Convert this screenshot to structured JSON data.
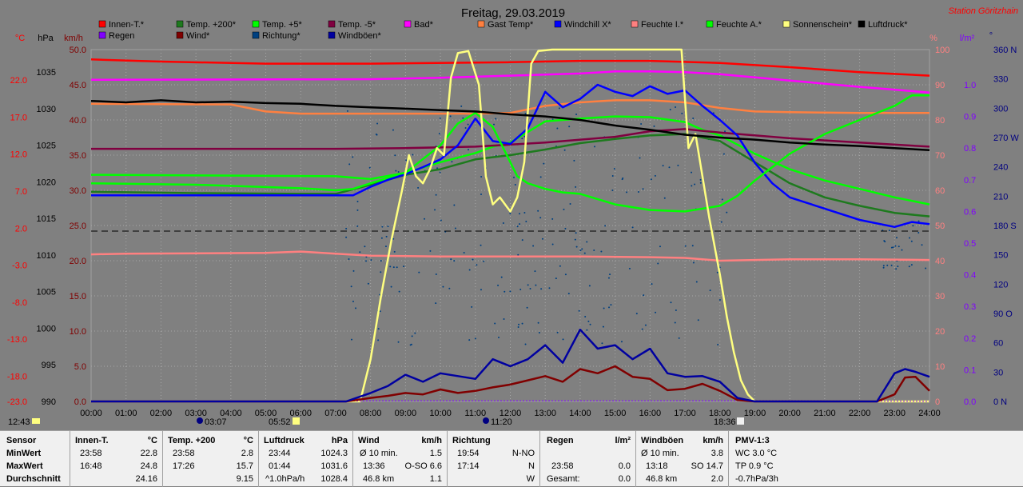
{
  "header": {
    "title": "Freitag, 29.03.2019",
    "station": "Station Göritzhain"
  },
  "axis_units": {
    "celsius": "°C",
    "hpa": "hPa",
    "kmh": "km/h",
    "percent": "%",
    "lm2": "l/m²",
    "deg": "°"
  },
  "legend": [
    {
      "label": "Innen-T.*",
      "color": "#ff0000"
    },
    {
      "label": "Temp. +200*",
      "color": "#1e7a1e"
    },
    {
      "label": "Temp. +5*",
      "color": "#00ff00"
    },
    {
      "label": "Temp. -5*",
      "color": "#800040"
    },
    {
      "label": "Bad*",
      "color": "#ff00ff"
    },
    {
      "label": "Gast Temp*",
      "color": "#ff8040"
    },
    {
      "label": "Windchill X*",
      "color": "#0000ff"
    },
    {
      "label": "Feuchte I.*",
      "color": "#ff8080"
    },
    {
      "label": "Feuchte A.*",
      "color": "#00ff00"
    },
    {
      "label": "Sonnenschein*",
      "color": "#ffff80"
    },
    {
      "label": "Luftdruck*",
      "color": "#000000"
    },
    {
      "label": "Regen",
      "color": "#8000ff"
    },
    {
      "label": "Wind*",
      "color": "#800000"
    },
    {
      "label": "Richtung*",
      "color": "#004080"
    },
    {
      "label": "Windböen*",
      "color": "#0000a0"
    }
  ],
  "markers": {
    "start_time": "12:43",
    "moon_time": "03:07",
    "sunrise": "05:52",
    "moon2_time": "11:20",
    "sunset": "18:36"
  },
  "chart_data": {
    "type": "line",
    "title": "Freitag, 29.03.2019",
    "x_ticks": [
      "00:00",
      "01:00",
      "02:00",
      "03:00",
      "04:00",
      "05:00",
      "06:00",
      "07:00",
      "08:00",
      "09:00",
      "10:00",
      "11:00",
      "12:00",
      "13:00",
      "14:00",
      "15:00",
      "16:00",
      "17:00",
      "18:00",
      "19:00",
      "20:00",
      "21:00",
      "22:00",
      "23:00",
      "24:00"
    ],
    "xlim": [
      0,
      24
    ],
    "axes": {
      "celsius": [
        "22.0",
        "17.0",
        "12.0",
        "7.0",
        "2.0",
        "-3.0",
        "-8.0",
        "-13.0",
        "-18.0",
        "-23.0"
      ],
      "hpa": [
        "1035",
        "1030",
        "1025",
        "1020",
        "1015",
        "1010",
        "1005",
        "1000",
        "995",
        "990"
      ],
      "kmh": [
        "50.0",
        "45.0",
        "40.0",
        "35.0",
        "30.0",
        "25.0",
        "20.0",
        "15.0",
        "10.0",
        "5.0",
        "0.0"
      ],
      "percent": [
        "100",
        "90",
        "80",
        "70",
        "60",
        "50",
        "40",
        "30",
        "20",
        "10",
        "0"
      ],
      "lm2": [
        "1.0",
        "0.9",
        "0.8",
        "0.7",
        "0.6",
        "0.5",
        "0.4",
        "0.3",
        "0.2",
        "0.1",
        "0.0"
      ],
      "direction": [
        "360 N",
        "330",
        "300",
        "270 W",
        "240",
        "210",
        "180 S",
        "150",
        "120",
        "90 O",
        "60",
        "30",
        "0 N"
      ]
    },
    "series": [
      {
        "name": "Innen-T.*",
        "axis": "kmh",
        "color": "#ff0000",
        "x": [
          0,
          2,
          5,
          8,
          12,
          14,
          16,
          18,
          20,
          22,
          24
        ],
        "y": [
          48.6,
          48.3,
          48.0,
          48.0,
          48.2,
          48.4,
          48.4,
          48.1,
          47.5,
          46.8,
          46.3
        ]
      },
      {
        "name": "Temp. +200*",
        "axis": "kmh",
        "color": "#1e7a1e",
        "x": [
          0,
          3,
          6,
          7,
          8,
          9,
          10,
          11,
          12,
          13,
          14,
          15,
          16,
          17,
          18,
          19,
          20,
          21,
          22,
          23,
          24
        ],
        "y": [
          29.8,
          29.6,
          29.5,
          29.5,
          30.8,
          32.2,
          33.0,
          34.4,
          35.0,
          35.8,
          36.7,
          37.3,
          37.8,
          38.0,
          37.0,
          34.0,
          31.0,
          29.0,
          27.8,
          26.8,
          26.3
        ]
      },
      {
        "name": "Temp. +5*",
        "axis": "kmh",
        "color": "#00ff00",
        "x": [
          0,
          3,
          6,
          7,
          7.5,
          8,
          9,
          10,
          11,
          11.5,
          12,
          13,
          14,
          15,
          16,
          17,
          17.5,
          18,
          18.5,
          19,
          20,
          21,
          22,
          23,
          24
        ],
        "y": [
          31.0,
          30.8,
          30.3,
          30.0,
          30.2,
          31.0,
          32.5,
          34.0,
          35.3,
          36.2,
          36.8,
          39.8,
          40.2,
          40.5,
          40.4,
          39.7,
          38.6,
          37.8,
          36.5,
          35.2,
          33.0,
          31.4,
          30.2,
          29.0,
          28.0
        ]
      },
      {
        "name": "Temp. -5*",
        "axis": "kmh",
        "color": "#800040",
        "x": [
          0,
          7,
          9,
          11,
          13,
          15,
          16,
          17,
          18,
          20,
          22,
          24
        ],
        "y": [
          35.9,
          35.9,
          36.0,
          36.2,
          36.8,
          37.6,
          38.4,
          38.7,
          38.2,
          37.4,
          36.8,
          36.2
        ]
      },
      {
        "name": "Bad*",
        "axis": "kmh",
        "color": "#ff00ff",
        "x": [
          0,
          8,
          10,
          12,
          14,
          15,
          16,
          17,
          18,
          20,
          22,
          24
        ],
        "y": [
          45.7,
          45.8,
          46.0,
          46.3,
          46.6,
          46.9,
          46.9,
          46.8,
          46.5,
          45.6,
          44.7,
          43.9
        ]
      },
      {
        "name": "Gast Temp*",
        "axis": "kmh",
        "color": "#ff8040",
        "x": [
          0,
          4,
          5,
          6,
          9,
          11,
          12,
          13,
          14,
          15,
          16,
          17,
          18,
          19,
          20,
          22,
          24
        ],
        "y": [
          42.3,
          42.2,
          41.2,
          40.9,
          40.9,
          40.9,
          41.0,
          42.0,
          42.5,
          42.8,
          42.8,
          42.5,
          41.7,
          41.2,
          41.1,
          41.0,
          41.0
        ]
      },
      {
        "name": "Windchill X*",
        "axis": "kmh",
        "color": "#0000ff",
        "x": [
          0,
          6,
          7.5,
          8,
          8.5,
          9,
          9.5,
          10,
          10.5,
          11,
          11.5,
          12,
          12.5,
          13,
          13.5,
          14,
          14.5,
          15,
          15.5,
          16,
          16.5,
          17,
          17.5,
          18,
          18.5,
          19,
          19.5,
          20,
          21,
          22,
          23,
          23.5,
          24
        ],
        "y": [
          29.3,
          29.3,
          29.3,
          30.5,
          31.5,
          32.3,
          33.3,
          34.4,
          36.4,
          40.2,
          37.0,
          36.6,
          38.8,
          44.0,
          41.8,
          43.0,
          45.0,
          44.0,
          43.4,
          44.8,
          43.7,
          44.2,
          42.0,
          40.0,
          37.8,
          33.9,
          31.0,
          29.0,
          27.4,
          25.8,
          24.8,
          25.5,
          25.2
        ]
      },
      {
        "name": "Feuchte I.*",
        "axis": "kmh",
        "color": "#ff8080",
        "x": [
          0,
          1,
          5,
          6,
          7,
          8,
          10,
          12,
          14,
          16,
          17,
          18,
          19,
          20,
          22,
          24
        ],
        "y": [
          20.9,
          21.0,
          21.1,
          21.3,
          21.0,
          20.7,
          20.6,
          20.6,
          20.6,
          20.5,
          20.4,
          20.0,
          20.1,
          20.2,
          20.2,
          20.1
        ]
      },
      {
        "name": "Feuchte A.*",
        "axis": "kmh",
        "color": "#00ff00",
        "x": [
          0,
          7,
          8,
          9,
          10,
          10.5,
          11,
          11.5,
          12,
          12.2,
          12.5,
          13,
          13.5,
          14,
          15,
          16,
          17,
          18,
          18.5,
          19,
          20,
          21,
          22,
          23,
          23.5,
          24
        ],
        "y": [
          32.2,
          32.0,
          31.6,
          32.5,
          36.4,
          39.5,
          41.0,
          39.0,
          34.0,
          32.0,
          31.0,
          30.2,
          29.7,
          29.5,
          28.0,
          27.2,
          27.0,
          27.8,
          29.2,
          31.4,
          35.2,
          38.0,
          40.0,
          42.0,
          43.5,
          43.5
        ]
      },
      {
        "name": "Sonnenschein*",
        "axis": "kmh",
        "color": "#ffff80",
        "x": [
          0,
          7.7,
          8,
          8.3,
          8.6,
          8.9,
          9.1,
          9.3,
          9.5,
          9.7,
          9.9,
          10.1,
          10.3,
          10.5,
          10.8,
          11.1,
          11.3,
          11.5,
          11.7,
          12,
          12.2,
          12.4,
          12.6,
          12.8,
          13.2,
          14,
          15,
          16,
          16.9,
          17.1,
          17.3,
          17.5,
          17.7,
          18,
          18.2,
          18.4,
          18.6,
          18.8,
          19,
          24
        ],
        "y": [
          0,
          0,
          6.0,
          15.0,
          23.0,
          30.0,
          35.0,
          32.0,
          31.0,
          33.0,
          36.0,
          35.0,
          46.0,
          49.5,
          49.8,
          45.0,
          32.0,
          28.0,
          29.0,
          27.0,
          29.0,
          34.0,
          48.0,
          49.8,
          50.0,
          50.0,
          50.0,
          50.0,
          50.0,
          36.0,
          38.0,
          32.0,
          26.0,
          18.0,
          12.0,
          7.0,
          3.0,
          1.0,
          0,
          0
        ]
      },
      {
        "name": "Luftdruck*",
        "axis": "kmh",
        "color": "#000000",
        "x": [
          0,
          1,
          2,
          3,
          4,
          5,
          6,
          7,
          8,
          9,
          10,
          11,
          12,
          13,
          14,
          15,
          16,
          17,
          18,
          19,
          20,
          21,
          22,
          23,
          24
        ],
        "y": [
          42.7,
          42.5,
          42.8,
          42.5,
          42.6,
          42.4,
          42.3,
          42.0,
          41.8,
          41.6,
          41.4,
          41.2,
          40.8,
          40.5,
          40.0,
          39.2,
          38.6,
          37.9,
          37.5,
          37.2,
          36.8,
          36.5,
          36.3,
          36.0,
          35.7
        ]
      },
      {
        "name": "Regen",
        "axis": "kmh",
        "color": "#8000ff",
        "x": [
          0,
          7,
          8,
          20,
          24
        ],
        "y": [
          0,
          0,
          0.1,
          0.1,
          0
        ]
      },
      {
        "name": "Wind*",
        "axis": "kmh",
        "color": "#800000",
        "x": [
          0,
          7.3,
          8,
          8.5,
          9,
          9.5,
          10,
          10.5,
          11,
          11.5,
          12,
          12.5,
          13,
          13.5,
          14,
          14.5,
          15,
          15.5,
          16,
          16.5,
          17,
          17.5,
          18,
          18.5,
          19,
          22.5,
          23,
          23.3,
          23.6,
          24
        ],
        "y": [
          0,
          0,
          0.5,
          0.8,
          1.2,
          1.0,
          1.7,
          1.2,
          1.5,
          2.0,
          2.4,
          3.0,
          3.6,
          2.8,
          4.6,
          4.0,
          5.0,
          3.5,
          3.2,
          1.6,
          1.8,
          2.5,
          1.5,
          0.2,
          0,
          0,
          1.0,
          3.4,
          3.5,
          1.5
        ]
      },
      {
        "name": "Windböen*",
        "axis": "kmh",
        "color": "#0000a0",
        "x": [
          0,
          7.3,
          8,
          8.5,
          9,
          9.5,
          10,
          10.5,
          11,
          11.5,
          12,
          12.5,
          13,
          13.5,
          14,
          14.5,
          15,
          15.5,
          16,
          16.5,
          17,
          17.5,
          18,
          18.5,
          19,
          22.5,
          23,
          23.3,
          23.6,
          24
        ],
        "y": [
          0,
          0,
          1.2,
          2.2,
          3.8,
          2.8,
          4.0,
          3.6,
          3.2,
          6.0,
          5.0,
          6.0,
          8.0,
          5.5,
          10.2,
          7.5,
          8.0,
          6.0,
          7.5,
          4.0,
          3.5,
          3.6,
          2.8,
          0.5,
          0,
          0,
          4.0,
          4.6,
          4.2,
          3.5
        ]
      }
    ],
    "reference_line": {
      "axis": "kmh",
      "y": 24.2,
      "style": "dashed"
    }
  },
  "stats": {
    "sensor": {
      "title": "Sensor",
      "rows": [
        "MinWert",
        "MaxWert",
        "Durchschnitt"
      ]
    },
    "innen": {
      "title": "Innen-T.",
      "unit": "°C",
      "rows": [
        [
          "23:58",
          "22.8"
        ],
        [
          "16:48",
          "24.8"
        ],
        [
          "",
          "24.16"
        ]
      ]
    },
    "temp200": {
      "title": "Temp. +200",
      "unit": "°C",
      "rows": [
        [
          "23:58",
          "2.8"
        ],
        [
          "17:26",
          "15.7"
        ],
        [
          "",
          "9.15"
        ]
      ]
    },
    "luftdruck": {
      "title": "Luftdruck",
      "unit": "hPa",
      "rows": [
        [
          "23:44",
          "1024.3"
        ],
        [
          "01:44",
          "1031.6"
        ],
        [
          "^1.0hPa/h",
          "1028.4"
        ]
      ]
    },
    "wind": {
      "title": "Wind",
      "unit": "km/h",
      "rows": [
        [
          "Ø 10 min.",
          "1.5"
        ],
        [
          "13:36",
          "O-SO 6.6"
        ],
        [
          "46.8 km",
          "1.1"
        ]
      ]
    },
    "richtung": {
      "title": "Richtung",
      "rows": [
        [
          "19:54",
          "N-NO"
        ],
        [
          "17:14",
          "N"
        ],
        [
          "",
          "W"
        ]
      ]
    },
    "regen": {
      "title": "Regen",
      "unit": "l/m²",
      "rows": [
        [
          "",
          ""
        ],
        [
          "23:58",
          "0.0"
        ],
        [
          "Gesamt:",
          "0.0"
        ]
      ]
    },
    "windboeen": {
      "title": "Windböen",
      "unit": "km/h",
      "rows": [
        [
          "Ø 10 min.",
          "3.8"
        ],
        [
          "13:18",
          "SO 14.7"
        ],
        [
          "46.8 km",
          "2.0"
        ]
      ]
    },
    "pmv": {
      "title": "PMV-1:3",
      "rows": [
        "WC 3.0 °C",
        "TP 0.9 °C",
        "-0.7hPa/3h"
      ]
    }
  }
}
